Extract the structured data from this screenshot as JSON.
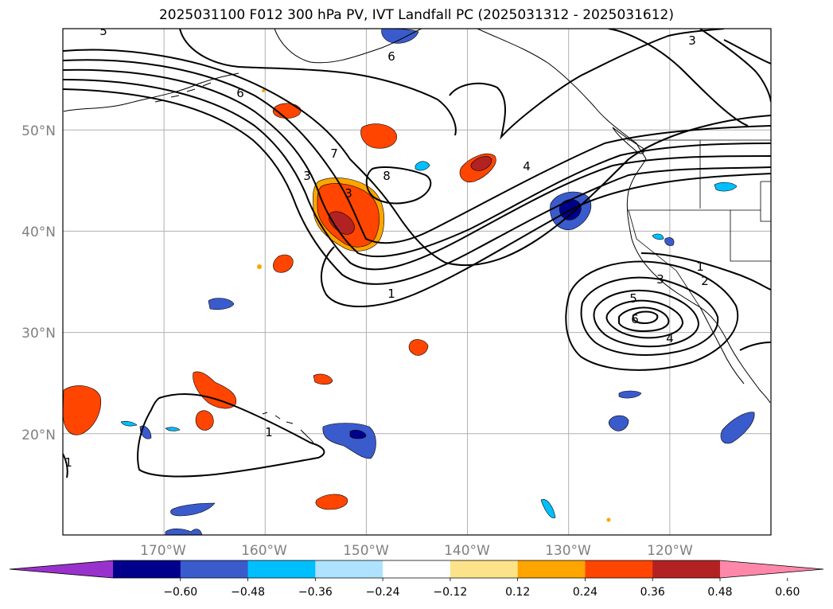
{
  "title": "2025031100 F012 300 hPa PV, IVT Landfall PC (2025031312 - 2025031612)",
  "map": {
    "lon_range": [
      -180,
      -110
    ],
    "lat_range": [
      10,
      60
    ],
    "lon_ticks": [
      {
        "value": -170,
        "label": "170°W"
      },
      {
        "value": -160,
        "label": "160°W"
      },
      {
        "value": -150,
        "label": "150°W"
      },
      {
        "value": -140,
        "label": "140°W"
      },
      {
        "value": -130,
        "label": "130°W"
      },
      {
        "value": -120,
        "label": "120°W"
      }
    ],
    "lat_ticks": [
      {
        "value": 20,
        "label": "20°N"
      },
      {
        "value": 30,
        "label": "30°N"
      },
      {
        "value": 40,
        "label": "40°N"
      },
      {
        "value": 50,
        "label": "50°N"
      }
    ],
    "gridlines": true,
    "contour_labels": [
      "5",
      "6",
      "6",
      "3",
      "7",
      "8",
      "3",
      "4",
      "3",
      "1",
      "1",
      "1",
      "2",
      "3",
      "5",
      "6",
      "4",
      "1"
    ]
  },
  "colorbar": {
    "ticks": [
      "−0.60",
      "−0.48",
      "−0.36",
      "−0.24",
      "−0.12",
      "0.12",
      "0.24",
      "0.36",
      "0.48",
      "0.60"
    ],
    "colors": [
      "#9932cc",
      "#00008b",
      "#3a5bcc",
      "#00bfff",
      "#aee3ff",
      "#ffffff",
      "#fce38a",
      "#ffa500",
      "#ff4500",
      "#b22222",
      "#ff88aa"
    ]
  }
}
